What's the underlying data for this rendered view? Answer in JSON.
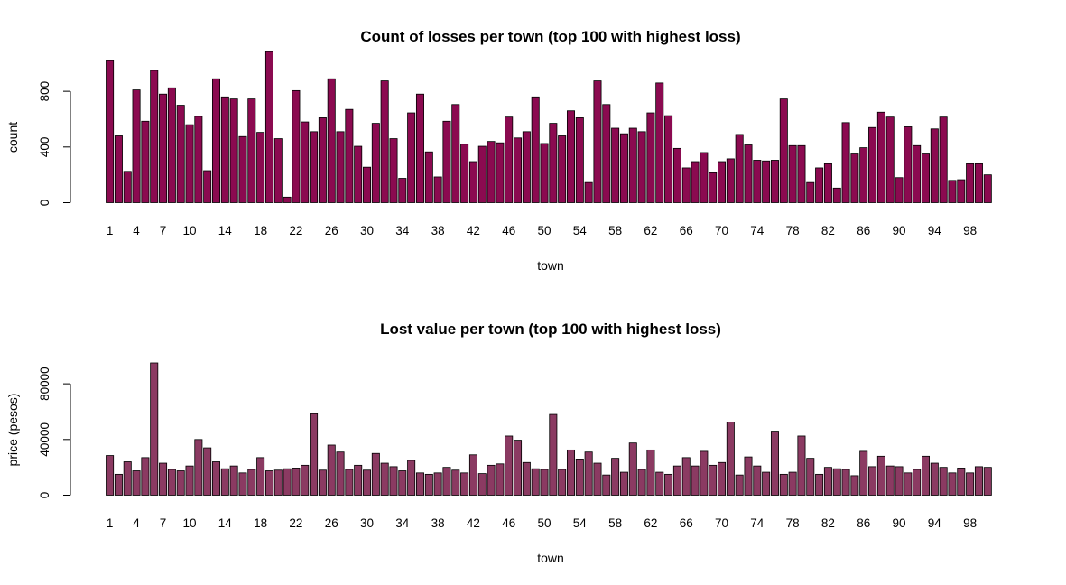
{
  "chart_data": [
    {
      "type": "bar",
      "title": "Count of losses per town (top 100 with highest loss)",
      "xlabel": "town",
      "ylabel": "count",
      "ylim": [
        0,
        950
      ],
      "yticks": [
        0,
        400,
        800
      ],
      "xtick_labels": [
        "1",
        "4",
        "7",
        "10",
        "14",
        "18",
        "22",
        "26",
        "30",
        "34",
        "38",
        "42",
        "46",
        "50",
        "54",
        "58",
        "62",
        "66",
        "70",
        "74",
        "78",
        "82",
        "86",
        "90",
        "94",
        "98"
      ],
      "xtick_positions": [
        1,
        4,
        7,
        10,
        14,
        18,
        22,
        26,
        30,
        34,
        38,
        42,
        46,
        50,
        54,
        58,
        62,
        66,
        70,
        74,
        78,
        82,
        86,
        90,
        94,
        98
      ],
      "bar_color": "#8b0a50",
      "values": [
        1020,
        480,
        225,
        810,
        585,
        950,
        780,
        825,
        700,
        560,
        620,
        230,
        890,
        760,
        745,
        475,
        745,
        505,
        1085,
        460,
        40,
        805,
        580,
        510,
        610,
        890,
        510,
        670,
        405,
        255,
        570,
        875,
        460,
        175,
        645,
        780,
        365,
        185,
        585,
        705,
        420,
        295,
        405,
        440,
        430,
        615,
        465,
        510,
        760,
        425,
        570,
        480,
        660,
        610,
        145,
        875,
        705,
        535,
        495,
        535,
        510,
        645,
        860,
        625,
        390,
        250,
        295,
        360,
        215,
        295,
        315,
        490,
        415,
        305,
        300,
        305,
        745,
        410,
        410,
        145,
        250,
        280,
        105,
        575,
        350,
        395,
        540,
        650,
        615,
        180,
        545,
        410,
        350,
        530,
        615,
        160,
        165,
        280,
        280,
        200
      ]
    },
    {
      "type": "bar",
      "title": "Lost value per town (top 100 with highest loss)",
      "xlabel": "town",
      "ylabel": "price (pesos)",
      "ylim": [
        0,
        95000
      ],
      "yticks": [
        0,
        40000,
        80000
      ],
      "xtick_labels": [
        "1",
        "4",
        "7",
        "10",
        "14",
        "18",
        "22",
        "26",
        "30",
        "34",
        "38",
        "42",
        "46",
        "50",
        "54",
        "58",
        "62",
        "66",
        "70",
        "74",
        "78",
        "82",
        "86",
        "90",
        "94",
        "98"
      ],
      "xtick_positions": [
        1,
        4,
        7,
        10,
        14,
        18,
        22,
        26,
        30,
        34,
        38,
        42,
        46,
        50,
        54,
        58,
        62,
        66,
        70,
        74,
        78,
        82,
        86,
        90,
        94,
        98
      ],
      "bar_color": "#8b3a62",
      "values": [
        28500,
        15000,
        24000,
        17500,
        27000,
        95000,
        23000,
        18500,
        17500,
        21000,
        40000,
        34000,
        24000,
        19000,
        21000,
        16000,
        18500,
        27000,
        17500,
        18000,
        19000,
        19500,
        21500,
        58500,
        18000,
        36000,
        31000,
        18500,
        21500,
        18000,
        30000,
        23000,
        20500,
        17500,
        25000,
        16000,
        15000,
        16000,
        20000,
        18000,
        16000,
        29000,
        15500,
        21500,
        22500,
        42500,
        39500,
        23500,
        19000,
        18500,
        58000,
        18500,
        32500,
        26000,
        31000,
        23000,
        14500,
        26500,
        16500,
        37500,
        18500,
        32500,
        16500,
        15000,
        21000,
        27000,
        21000,
        31500,
        21500,
        23500,
        52500,
        14500,
        27500,
        21000,
        16500,
        46000,
        15000,
        16500,
        42500,
        26500,
        15000,
        20000,
        19000,
        18500,
        14000,
        31500,
        20500,
        28000,
        21000,
        20500,
        16000,
        18500,
        28000,
        23000,
        20000,
        16000,
        19500,
        16000,
        20500,
        20000
      ]
    }
  ]
}
